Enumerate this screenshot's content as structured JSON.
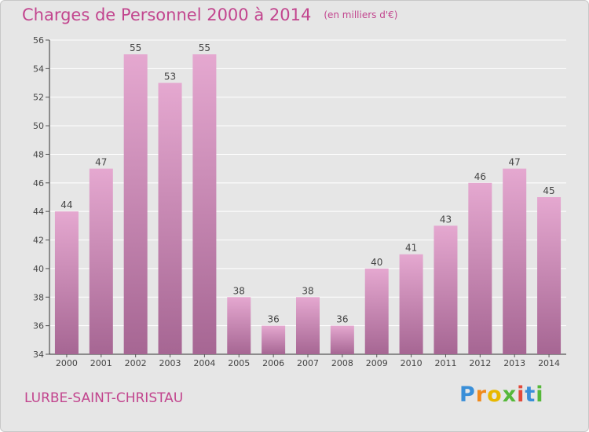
{
  "colors": {
    "title": "#c2458e",
    "bar_top": "#e5a8d0",
    "bar_bottom": "#a66693",
    "background": "#e6e6e6",
    "grid": "#ffffff"
  },
  "title": {
    "main": "Charges de Personnel 2000 à 2014",
    "sub": "(en milliers d'€)"
  },
  "footer": {
    "commune": "LURBE-SAINT-CHRISTAU",
    "logo": "Proxiti"
  },
  "chart_data": {
    "type": "bar",
    "title": "Charges de Personnel 2000 à 2014",
    "subtitle": "(en milliers d'€)",
    "categories": [
      "2000",
      "2001",
      "2002",
      "2003",
      "2004",
      "2005",
      "2006",
      "2007",
      "2008",
      "2009",
      "2010",
      "2011",
      "2012",
      "2013",
      "2014"
    ],
    "values": [
      44,
      47,
      55,
      53,
      55,
      38,
      36,
      38,
      36,
      40,
      41,
      43,
      46,
      47,
      45
    ],
    "ylim": [
      34,
      56
    ],
    "yticks": [
      34,
      36,
      38,
      40,
      42,
      44,
      46,
      48,
      50,
      52,
      54,
      56
    ],
    "grid": true,
    "xlabel": "",
    "ylabel": ""
  }
}
